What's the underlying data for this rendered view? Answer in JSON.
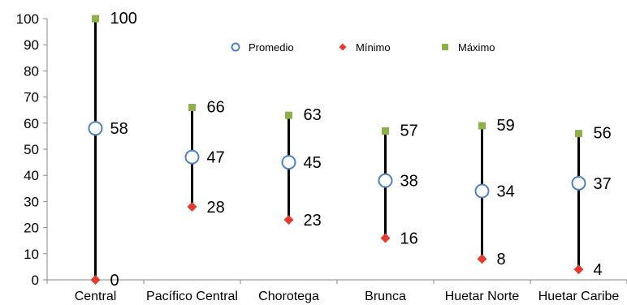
{
  "chart_data": {
    "type": "scatter",
    "title": "",
    "xlabel": "",
    "ylabel": "",
    "ylim": [
      0,
      100
    ],
    "yticks": [
      0,
      10,
      20,
      30,
      40,
      50,
      60,
      70,
      80,
      90,
      100
    ],
    "categories": [
      "Central",
      "Pacífico Central",
      "Chorotega",
      "Brunca",
      "Huetar Norte",
      "Huetar Caribe"
    ],
    "series": [
      {
        "name": "Promedio",
        "marker": "open-circle",
        "color": "#4f81bd",
        "values": [
          58,
          47,
          45,
          38,
          34,
          37
        ]
      },
      {
        "name": "Mínimo",
        "marker": "diamond",
        "color": "#e03c31",
        "values": [
          0,
          28,
          23,
          16,
          8,
          4
        ]
      },
      {
        "name": "Máximo",
        "marker": "square",
        "color": "#8db04a",
        "values": [
          100,
          66,
          63,
          57,
          59,
          56
        ]
      }
    ],
    "legend_position": "top-right",
    "grid": false
  }
}
